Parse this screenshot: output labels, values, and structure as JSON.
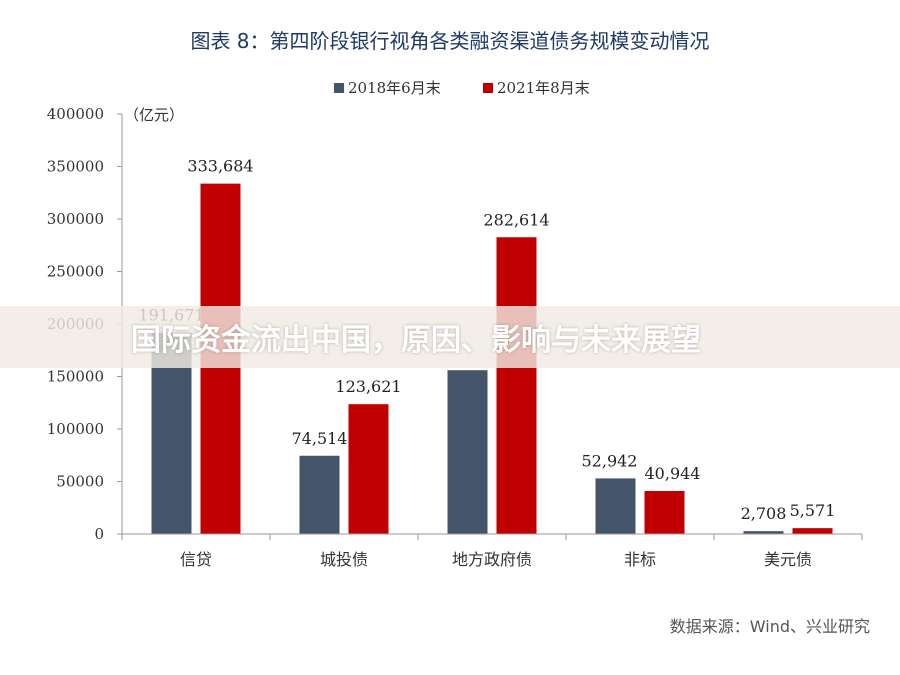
{
  "chart_data": {
    "type": "bar",
    "title": "图表 8：第四阶段银行视角各类融资渠道债务规模变动情况",
    "unit_label": "（亿元）",
    "categories": [
      "信贷",
      "城投债",
      "地方政府债",
      "非标",
      "美元债"
    ],
    "series": [
      {
        "name": "2018年6月末",
        "values": [
          191671,
          74514,
          156000,
          52942,
          2708
        ],
        "labels": [
          "191,671",
          "74,514",
          "",
          "52,942",
          "2,708"
        ],
        "color": "#44546a"
      },
      {
        "name": "2021年8月末",
        "values": [
          333684,
          123621,
          282614,
          40944,
          5571
        ],
        "labels": [
          "333,684",
          "123,621",
          "282,614",
          "40,944",
          "5,571"
        ],
        "color": "#c00000"
      }
    ],
    "ylim": [
      0,
      400000
    ],
    "yticks": [
      "0",
      "50000",
      "100000",
      "150000",
      "200000",
      "250000",
      "300000",
      "350000",
      "400000"
    ],
    "grid": false,
    "legend_position": "top-center",
    "source": "数据来源：Wind、兴业研究"
  },
  "overlay": {
    "headline": "国际资金流出中国，原因、影响与未来展望"
  }
}
